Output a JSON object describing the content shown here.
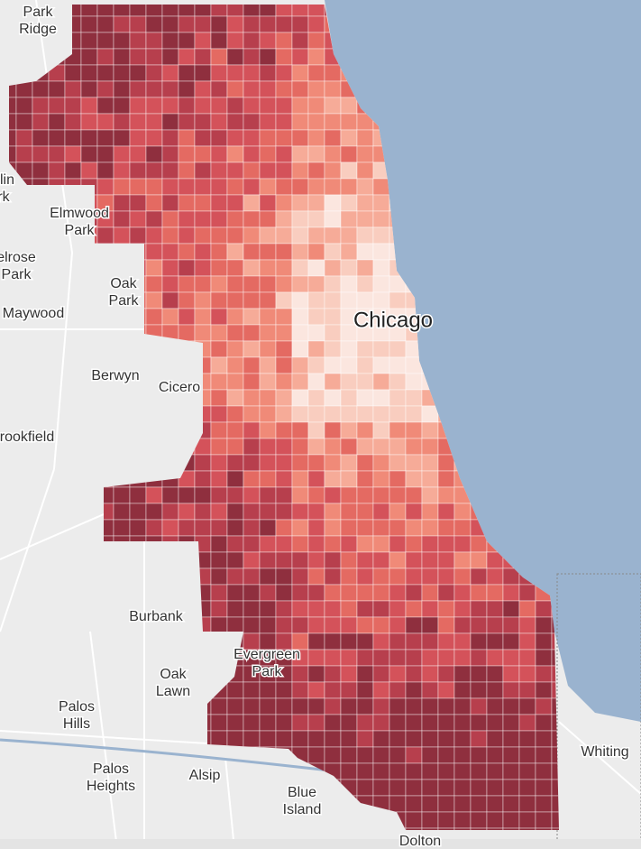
{
  "map": {
    "labels": [
      {
        "lines": [
          "Park",
          "Ridge"
        ]
      },
      {
        "lines": [
          "klin",
          "rk"
        ]
      },
      {
        "lines": [
          "Elmwood",
          "Park"
        ]
      },
      {
        "lines": [
          "elrose",
          "Park"
        ]
      },
      {
        "lines": [
          "Oak",
          "Park"
        ]
      },
      {
        "lines": [
          "Maywood"
        ]
      },
      {
        "lines": [
          "Chicago"
        ]
      },
      {
        "lines": [
          "Berwyn"
        ]
      },
      {
        "lines": [
          "Cicero"
        ]
      },
      {
        "lines": [
          "rookfield"
        ]
      },
      {
        "lines": [
          "Burbank"
        ]
      },
      {
        "lines": [
          "Evergreen",
          "Park"
        ]
      },
      {
        "lines": [
          "Oak",
          "Lawn"
        ]
      },
      {
        "lines": [
          "Palos",
          "Hills"
        ]
      },
      {
        "lines": [
          "Palos",
          "Heights"
        ]
      },
      {
        "lines": [
          "Alsip"
        ]
      },
      {
        "lines": [
          "Blue",
          "Island"
        ]
      },
      {
        "lines": [
          "Whiting"
        ]
      },
      {
        "lines": [
          "Dolton"
        ]
      }
    ]
  }
}
